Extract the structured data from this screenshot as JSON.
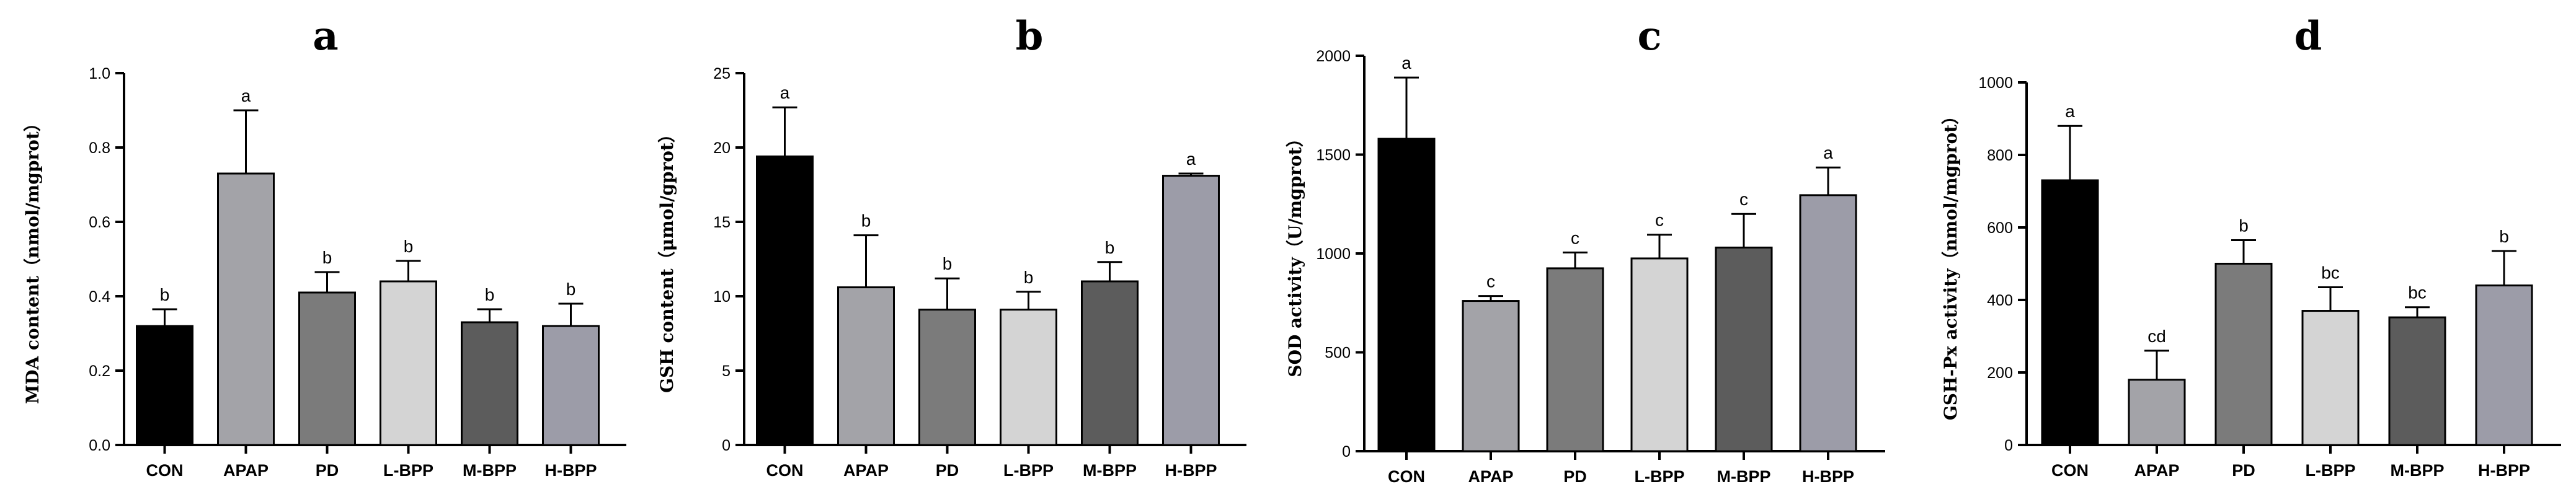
{
  "chart_data": [
    {
      "type": "bar",
      "title": "a",
      "xlabel": "",
      "ylabel": "MDA content（nmol/mgprot）",
      "ylim": [
        0,
        1.0
      ],
      "yticks": [
        "0.0",
        "0.2",
        "0.4",
        "0.6",
        "0.8",
        "1.0"
      ],
      "categories": [
        "CON",
        "APAP",
        "PD",
        "L-BPP",
        "M-BPP",
        "H-BPP"
      ],
      "values": [
        0.32,
        0.73,
        0.41,
        0.44,
        0.33,
        0.32
      ],
      "errors": [
        0.045,
        0.17,
        0.055,
        0.055,
        0.035,
        0.06
      ],
      "significance": [
        "b",
        "a",
        "b",
        "b",
        "b",
        "b"
      ],
      "colors": [
        "#000000",
        "#a3a3a8",
        "#7b7b7b",
        "#d4d4d4",
        "#5c5c5c",
        "#9c9ca8"
      ]
    },
    {
      "type": "bar",
      "title": "b",
      "xlabel": "",
      "ylabel": "GSH content（μmol/gprot）",
      "ylim": [
        0,
        25
      ],
      "yticks": [
        "0",
        "5",
        "10",
        "15",
        "20",
        "25"
      ],
      "categories": [
        "CON",
        "APAP",
        "PD",
        "L-BPP",
        "M-BPP",
        "H-BPP"
      ],
      "values": [
        19.4,
        10.6,
        9.1,
        9.1,
        11.0,
        18.1
      ],
      "errors": [
        3.3,
        3.5,
        2.1,
        1.2,
        1.3,
        0.15
      ],
      "significance": [
        "a",
        "b",
        "b",
        "b",
        "b",
        "a"
      ],
      "colors": [
        "#000000",
        "#a3a3a8",
        "#7b7b7b",
        "#d4d4d4",
        "#5c5c5c",
        "#9c9ca8"
      ]
    },
    {
      "type": "bar",
      "title": "c",
      "xlabel": "",
      "ylabel": "SOD activity（U/mgprot）",
      "ylim": [
        0,
        2000
      ],
      "yticks": [
        "0",
        "500",
        "1000",
        "1500",
        "2000"
      ],
      "categories": [
        "CON",
        "APAP",
        "PD",
        "L-BPP",
        "M-BPP",
        "H-BPP"
      ],
      "values": [
        1580,
        760,
        925,
        975,
        1030,
        1295
      ],
      "errors": [
        310,
        25,
        80,
        120,
        170,
        140
      ],
      "significance": [
        "a",
        "c",
        "c",
        "c",
        "c",
        "a"
      ],
      "colors": [
        "#000000",
        "#a3a3a8",
        "#7b7b7b",
        "#d4d4d4",
        "#5c5c5c",
        "#9c9ca8"
      ]
    },
    {
      "type": "bar",
      "title": "d",
      "xlabel": "",
      "ylabel": "GSH-Px activity（nmol/mgprot）",
      "ylim": [
        0,
        1000
      ],
      "yticks": [
        "0",
        "200",
        "400",
        "600",
        "800",
        "1000"
      ],
      "categories": [
        "CON",
        "APAP",
        "PD",
        "L-BPP",
        "M-BPP",
        "H-BPP"
      ],
      "values": [
        730,
        180,
        500,
        370,
        352,
        440
      ],
      "errors": [
        150,
        80,
        65,
        65,
        28,
        95
      ],
      "significance": [
        "a",
        "cd",
        "b",
        "bc",
        "bc",
        "b"
      ],
      "colors": [
        "#000000",
        "#a3a3a8",
        "#7b7b7b",
        "#d4d4d4",
        "#5c5c5c",
        "#9c9ca8"
      ]
    }
  ]
}
